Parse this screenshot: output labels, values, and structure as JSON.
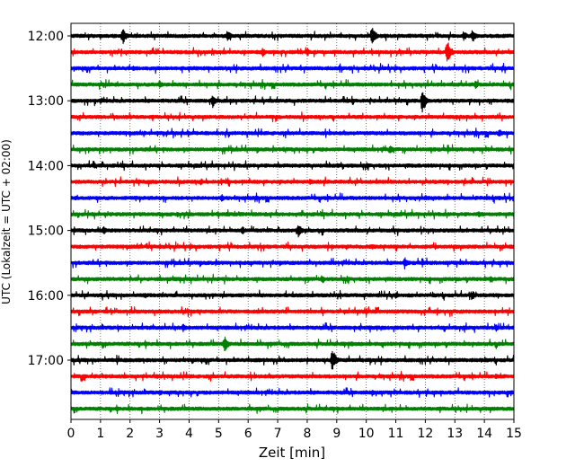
{
  "chart_data": {
    "type": "line",
    "xlabel": "Zeit  [min]",
    "ylabel": "UTC (Lokalzeit = UTC + 02:00)",
    "xlim": [
      0,
      15
    ],
    "x_ticks": [
      0,
      1,
      2,
      3,
      4,
      5,
      6,
      7,
      8,
      9,
      10,
      11,
      12,
      13,
      14,
      15
    ],
    "x_grid": "dotted",
    "trace_interval_min": 15,
    "y_ticks": [
      "12:00",
      "13:00",
      "14:00",
      "15:00",
      "16:00",
      "17:00"
    ],
    "color_cycle": [
      "#000000",
      "#ff0000",
      "#0000ff",
      "#008000"
    ],
    "traces": [
      {
        "start": "12:00",
        "color": "#000000",
        "events": [
          {
            "t": 1.75,
            "amp": 10
          },
          {
            "t": 5.3,
            "amp": 7
          },
          {
            "t": 10.2,
            "amp": 11
          },
          {
            "t": 13.6,
            "amp": 8
          },
          {
            "t": 13.3,
            "amp": 6
          }
        ]
      },
      {
        "start": "12:15",
        "color": "#ff0000",
        "events": [
          {
            "t": 6.5,
            "amp": 5
          },
          {
            "t": 8.0,
            "amp": 5
          },
          {
            "t": 12.75,
            "amp": 14
          }
        ]
      },
      {
        "start": "12:30",
        "color": "#0000ff",
        "events": [
          {
            "t": 2.1,
            "amp": 3
          },
          {
            "t": 14.6,
            "amp": 3
          }
        ]
      },
      {
        "start": "12:45",
        "color": "#008000",
        "events": [
          {
            "t": 3.0,
            "amp": 5
          },
          {
            "t": 13.7,
            "amp": 5
          }
        ]
      },
      {
        "start": "13:00",
        "color": "#000000",
        "events": [
          {
            "t": 4.8,
            "amp": 8
          },
          {
            "t": 11.9,
            "amp": 15
          },
          {
            "t": 1.0,
            "amp": 3
          }
        ]
      },
      {
        "start": "13:15",
        "color": "#ff0000",
        "events": [
          {
            "t": 2.0,
            "amp": 3
          },
          {
            "t": 10.0,
            "amp": 3
          }
        ]
      },
      {
        "start": "13:30",
        "color": "#0000ff",
        "events": [
          {
            "t": 14.5,
            "amp": 5
          },
          {
            "t": 2.5,
            "amp": 3
          }
        ]
      },
      {
        "start": "13:45",
        "color": "#008000",
        "events": [
          {
            "t": 10.8,
            "amp": 6
          },
          {
            "t": 7.2,
            "amp": 3
          }
        ]
      },
      {
        "start": "14:00",
        "color": "#000000",
        "events": [
          {
            "t": 0.8,
            "amp": 3
          },
          {
            "t": 9.0,
            "amp": 3
          }
        ]
      },
      {
        "start": "14:15",
        "color": "#ff0000",
        "events": [
          {
            "t": 4.4,
            "amp": 4
          },
          {
            "t": 8.1,
            "amp": 4
          },
          {
            "t": 2.3,
            "amp": 3
          }
        ]
      },
      {
        "start": "14:30",
        "color": "#0000ff",
        "events": [
          {
            "t": 5.1,
            "amp": 5
          },
          {
            "t": 12.0,
            "amp": 3
          }
        ]
      },
      {
        "start": "14:45",
        "color": "#008000",
        "events": [
          {
            "t": 13.8,
            "amp": 4
          },
          {
            "t": 3.6,
            "amp": 3
          }
        ]
      },
      {
        "start": "15:00",
        "color": "#000000",
        "events": [
          {
            "t": 7.7,
            "amp": 8
          },
          {
            "t": 1.1,
            "amp": 5
          },
          {
            "t": 5.8,
            "amp": 5
          }
        ]
      },
      {
        "start": "15:15",
        "color": "#ff0000",
        "events": [
          {
            "t": 10.2,
            "amp": 3
          },
          {
            "t": 3.0,
            "amp": 3
          }
        ]
      },
      {
        "start": "15:30",
        "color": "#0000ff",
        "events": [
          {
            "t": 11.3,
            "amp": 7
          },
          {
            "t": 7.1,
            "amp": 3
          }
        ]
      },
      {
        "start": "15:45",
        "color": "#008000",
        "events": [
          {
            "t": 8.5,
            "amp": 4
          },
          {
            "t": 14.2,
            "amp": 4
          },
          {
            "t": 2.0,
            "amp": 3
          }
        ]
      },
      {
        "start": "16:00",
        "color": "#000000",
        "events": [
          {
            "t": 13.6,
            "amp": 5
          },
          {
            "t": 11.0,
            "amp": 4
          },
          {
            "t": 2.5,
            "amp": 4
          }
        ]
      },
      {
        "start": "16:15",
        "color": "#ff0000",
        "events": [
          {
            "t": 8.0,
            "amp": 3
          }
        ]
      },
      {
        "start": "16:30",
        "color": "#0000ff",
        "events": [
          {
            "t": 3.8,
            "amp": 5
          },
          {
            "t": 14.4,
            "amp": 4
          }
        ]
      },
      {
        "start": "16:45",
        "color": "#008000",
        "events": [
          {
            "t": 5.2,
            "amp": 10
          },
          {
            "t": 9.5,
            "amp": 3
          }
        ]
      },
      {
        "start": "17:00",
        "color": "#000000",
        "events": [
          {
            "t": 8.85,
            "amp": 14
          },
          {
            "t": 13.9,
            "amp": 3
          }
        ]
      },
      {
        "start": "17:15",
        "color": "#ff0000",
        "events": [
          {
            "t": 14.4,
            "amp": 4
          },
          {
            "t": 2.9,
            "amp": 3
          }
        ]
      },
      {
        "start": "17:30",
        "color": "#0000ff",
        "events": [
          {
            "t": 3.0,
            "amp": 4
          },
          {
            "t": 10.2,
            "amp": 4
          }
        ]
      },
      {
        "start": "17:45",
        "color": "#008000",
        "events": [
          {
            "t": 6.0,
            "amp": 2
          }
        ]
      }
    ]
  }
}
